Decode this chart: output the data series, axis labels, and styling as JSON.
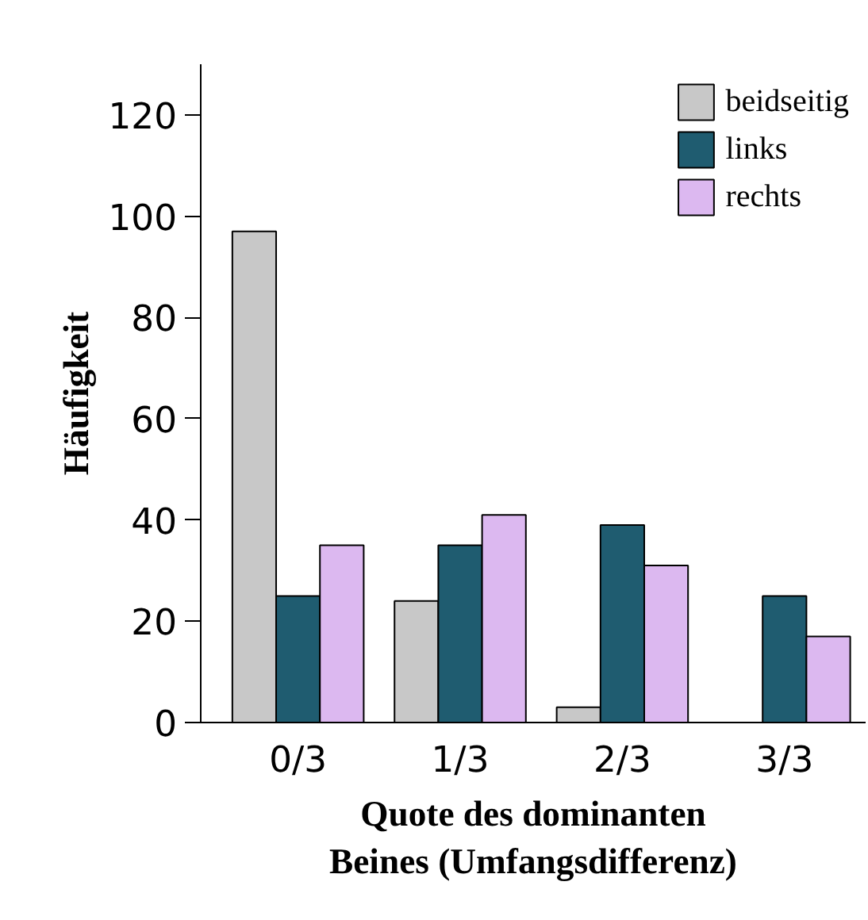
{
  "chart_data": {
    "type": "bar",
    "xlabel": "Quote des dominanten Beines (Umfangsdifferenz)",
    "ylabel": "Häufigkeit",
    "categories": [
      "0/3",
      "1/3",
      "2/3",
      "3/3"
    ],
    "series": [
      {
        "name": "beidseitig",
        "color": "#c8c8c8",
        "values": [
          97,
          24,
          3,
          0
        ]
      },
      {
        "name": "links",
        "color": "#1f5c70",
        "values": [
          25,
          35,
          39,
          25
        ]
      },
      {
        "name": "rechts",
        "color": "#dcb8f0",
        "values": [
          35,
          41,
          31,
          17
        ]
      }
    ],
    "ylim": [
      0,
      130
    ],
    "yticks": [
      0,
      20,
      40,
      60,
      80,
      100,
      120
    ],
    "grid": false,
    "legend": "top right"
  }
}
